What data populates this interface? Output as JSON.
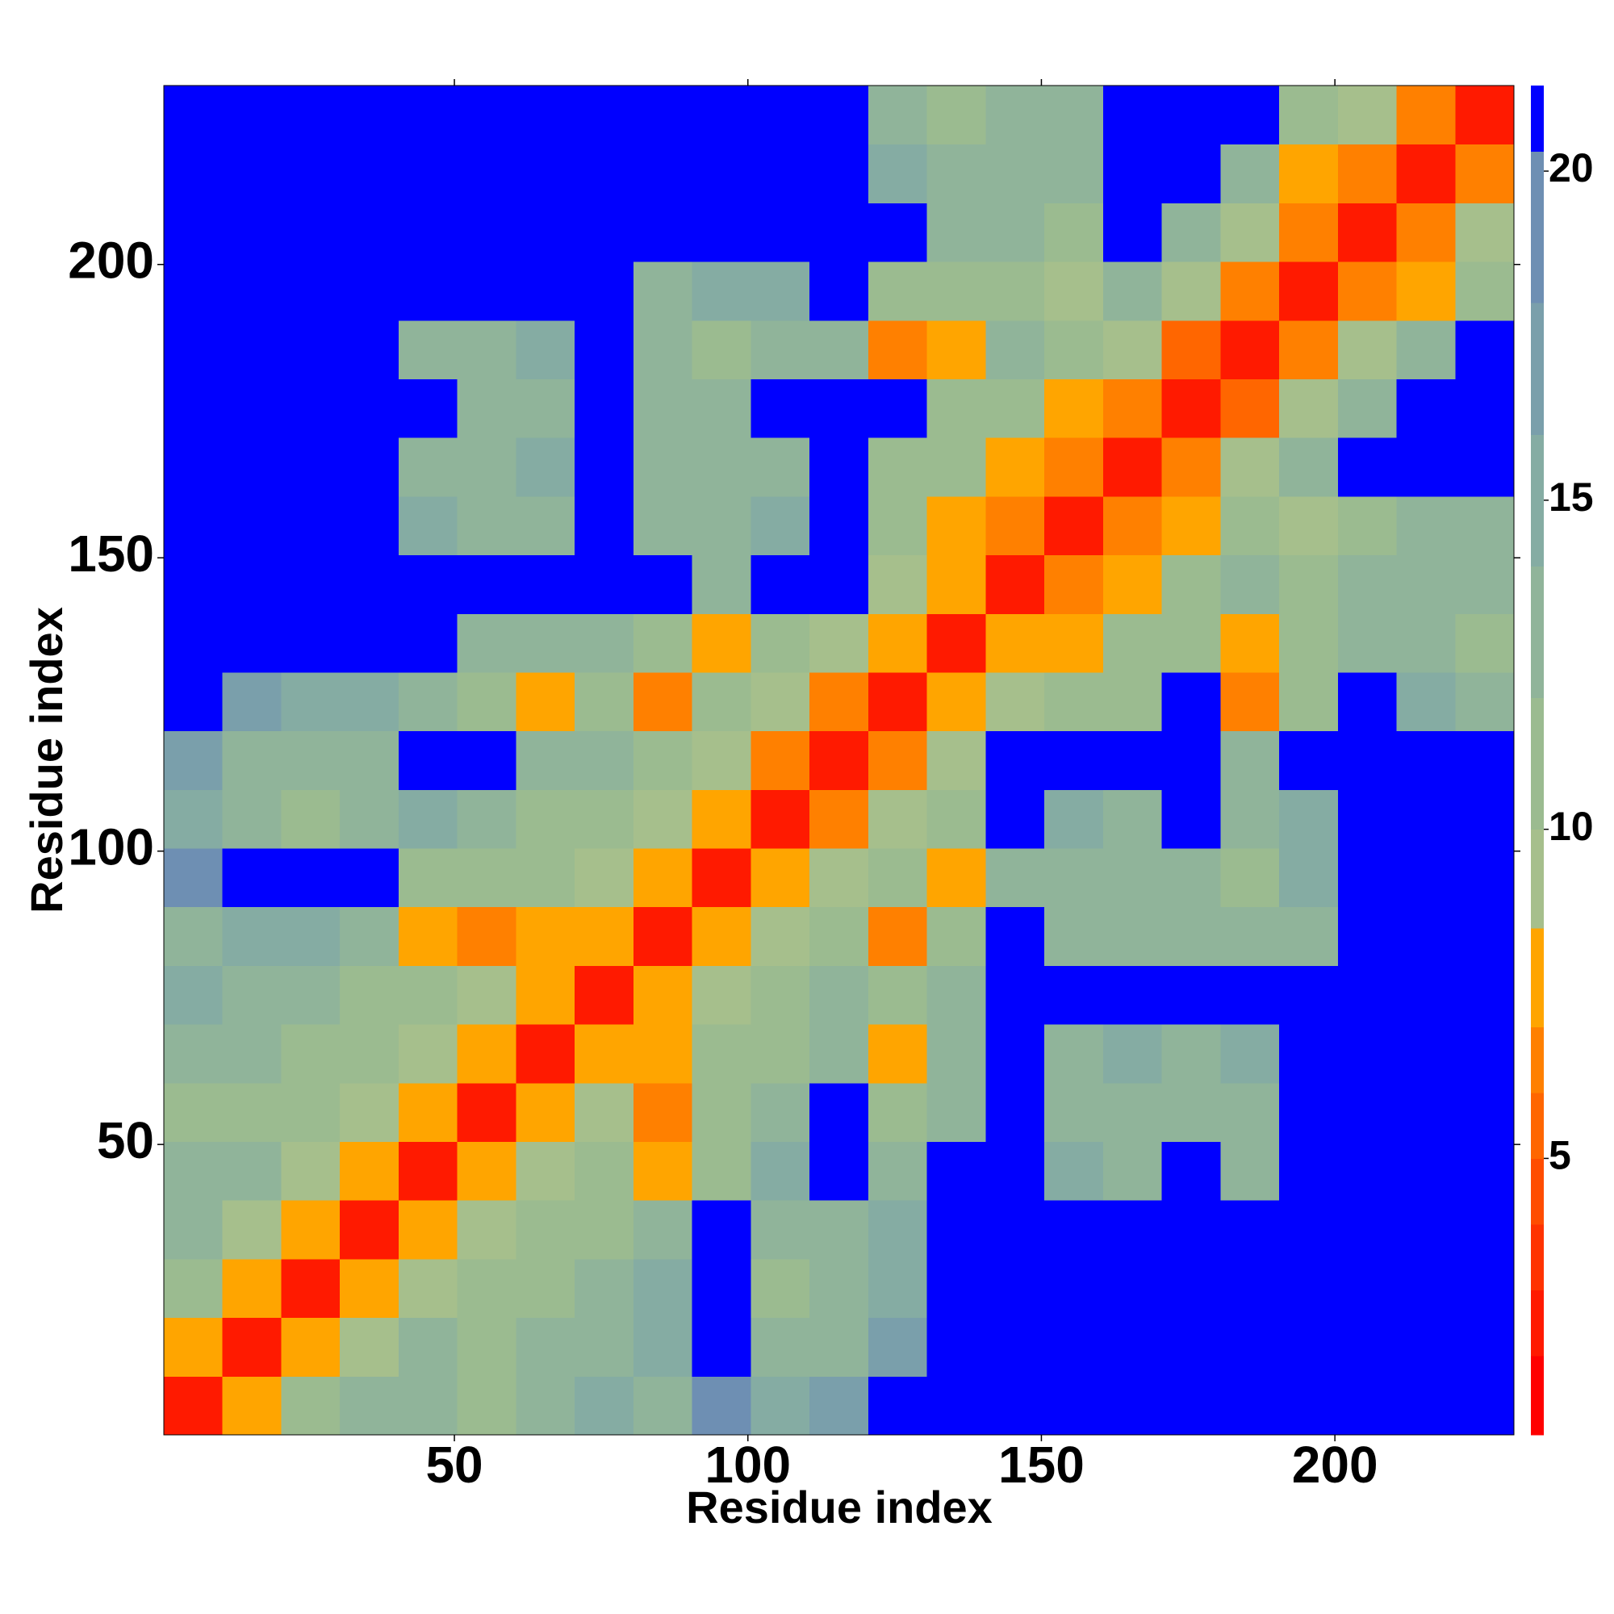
{
  "chart_data": {
    "type": "heatmap",
    "x_label": "Residue index",
    "y_label": "Residue index",
    "xlim": [
      0.5,
      230.5
    ],
    "ylim": [
      0.5,
      230.5
    ],
    "xticks": [
      50,
      100,
      150,
      200
    ],
    "yticks": [
      50,
      100,
      150,
      200
    ],
    "xbins": [
      0.5,
      10.5,
      20.5,
      30.5,
      40.5,
      50.5,
      60.5,
      70.5,
      80.5,
      90.5,
      100.5,
      110.5,
      120.5,
      130.5,
      140.5,
      150.5,
      160.5,
      170.5,
      180.5,
      190.5,
      200.5,
      210.5,
      220.5,
      230.5
    ],
    "ybins": [
      0.5,
      10.5,
      20.5,
      30.5,
      40.5,
      50.5,
      60.5,
      70.5,
      80.5,
      90.5,
      100.5,
      110.5,
      120.5,
      130.5,
      140.5,
      150.5,
      160.5,
      170.5,
      180.5,
      190.5,
      200.5,
      210.5,
      220.5,
      230.5
    ],
    "z": [
      [
        2,
        7,
        10,
        12,
        13,
        11,
        13,
        14,
        13,
        18,
        14,
        16,
        21,
        21,
        21,
        21,
        21,
        21,
        21,
        21,
        21,
        21,
        21
      ],
      [
        7,
        2,
        7,
        9,
        12,
        11,
        12,
        13,
        14,
        21,
        12,
        13,
        16,
        21,
        21,
        21,
        21,
        21,
        21,
        21,
        21,
        21,
        21
      ],
      [
        10,
        7,
        2,
        7,
        9,
        10,
        11,
        13,
        14,
        21,
        11,
        12,
        15,
        21,
        21,
        21,
        21,
        21,
        21,
        21,
        21,
        21,
        21
      ],
      [
        12,
        9,
        7,
        2,
        7,
        9,
        10,
        11,
        12,
        21,
        13,
        12,
        14,
        21,
        21,
        21,
        21,
        21,
        21,
        21,
        21,
        21,
        21
      ],
      [
        13,
        12,
        9,
        7,
        2,
        7,
        9,
        10,
        7,
        11,
        14,
        21,
        12,
        21,
        21,
        14,
        13,
        21,
        13,
        21,
        21,
        21,
        21
      ],
      [
        11,
        11,
        10,
        9,
        7,
        2,
        7,
        9,
        6,
        10,
        13,
        21,
        11,
        12,
        21,
        13,
        12,
        13,
        12,
        21,
        21,
        21,
        21
      ],
      [
        13,
        12,
        11,
        10,
        9,
        7,
        2,
        7,
        8,
        10,
        11,
        12,
        7,
        12,
        21,
        13,
        14,
        13,
        14,
        21,
        21,
        21,
        21
      ],
      [
        14,
        13,
        13,
        11,
        10,
        9,
        7,
        2,
        7,
        9,
        11,
        12,
        11,
        12,
        21,
        21,
        21,
        21,
        21,
        21,
        21,
        21,
        21
      ],
      [
        13,
        14,
        14,
        12,
        7,
        6,
        8,
        7,
        2,
        7,
        9,
        10,
        6,
        11,
        21,
        13,
        12,
        13,
        12,
        13,
        21,
        21,
        21
      ],
      [
        18,
        21,
        21,
        21,
        11,
        10,
        10,
        9,
        7,
        2,
        7,
        9,
        11,
        8,
        13,
        12,
        13,
        13,
        11,
        14,
        21,
        21,
        21
      ],
      [
        14,
        12,
        11,
        13,
        14,
        13,
        11,
        11,
        9,
        7,
        2,
        6,
        9,
        11,
        21,
        14,
        13,
        21,
        13,
        14,
        21,
        21,
        21
      ],
      [
        16,
        13,
        12,
        12,
        21,
        21,
        12,
        12,
        10,
        9,
        6,
        2,
        6,
        9,
        21,
        21,
        21,
        21,
        12,
        21,
        21,
        21,
        21
      ],
      [
        21,
        16,
        15,
        14,
        12,
        11,
        7,
        11,
        6,
        11,
        9,
        6,
        2,
        7,
        9,
        11,
        10,
        21,
        6,
        11,
        21,
        14,
        12
      ],
      [
        21,
        21,
        21,
        21,
        21,
        12,
        12,
        12,
        11,
        8,
        11,
        9,
        7,
        2,
        7,
        8,
        10,
        11,
        8,
        10,
        12,
        12,
        11
      ],
      [
        21,
        21,
        21,
        21,
        21,
        21,
        21,
        21,
        21,
        13,
        21,
        21,
        9,
        7,
        2,
        6,
        8,
        10,
        12,
        10,
        12,
        12,
        13
      ],
      [
        21,
        21,
        21,
        21,
        14,
        13,
        13,
        21,
        13,
        12,
        14,
        21,
        11,
        8,
        6,
        2,
        6,
        8,
        11,
        9,
        11,
        13,
        12
      ],
      [
        21,
        21,
        21,
        21,
        13,
        12,
        14,
        21,
        12,
        13,
        13,
        21,
        10,
        10,
        8,
        6,
        2,
        6,
        9,
        12,
        21,
        21,
        21
      ],
      [
        21,
        21,
        21,
        21,
        21,
        13,
        13,
        21,
        13,
        13,
        21,
        21,
        21,
        11,
        10,
        8,
        6,
        2,
        5,
        9,
        12,
        21,
        21
      ],
      [
        21,
        21,
        21,
        21,
        13,
        12,
        14,
        21,
        12,
        11,
        13,
        12,
        6,
        8,
        12,
        11,
        9,
        5,
        2,
        6,
        9,
        12,
        21
      ],
      [
        21,
        21,
        21,
        21,
        21,
        21,
        21,
        21,
        13,
        14,
        14,
        21,
        11,
        10,
        10,
        9,
        12,
        9,
        6,
        2,
        6,
        8,
        11
      ],
      [
        21,
        21,
        21,
        21,
        21,
        21,
        21,
        21,
        21,
        21,
        21,
        21,
        21,
        12,
        12,
        11,
        21,
        12,
        9,
        6,
        2,
        6,
        9
      ],
      [
        21,
        21,
        21,
        21,
        21,
        21,
        21,
        21,
        21,
        21,
        21,
        21,
        14,
        12,
        12,
        13,
        21,
        21,
        12,
        8,
        6,
        2,
        6
      ],
      [
        21,
        21,
        21,
        21,
        21,
        21,
        21,
        21,
        21,
        21,
        21,
        21,
        12,
        11,
        13,
        12,
        21,
        21,
        21,
        11,
        9,
        6,
        2
      ]
    ],
    "levels": [
      0.8,
      2,
      3,
      4,
      5,
      6,
      7,
      8.5,
      10,
      12,
      14,
      16,
      18,
      20.3,
      21.3
    ],
    "colors": [
      "#ff0000",
      "#ff1a00",
      "#ff3300",
      "#ff4d00",
      "#ff6600",
      "#ff8000",
      "#ffa500",
      "#a6bf8c",
      "#9bbb90",
      "#90b49a",
      "#85aca3",
      "#7a9fab",
      "#6e8fb3",
      "#0000ff"
    ],
    "colorbar_ticks": [
      5,
      10,
      15,
      20
    ]
  }
}
